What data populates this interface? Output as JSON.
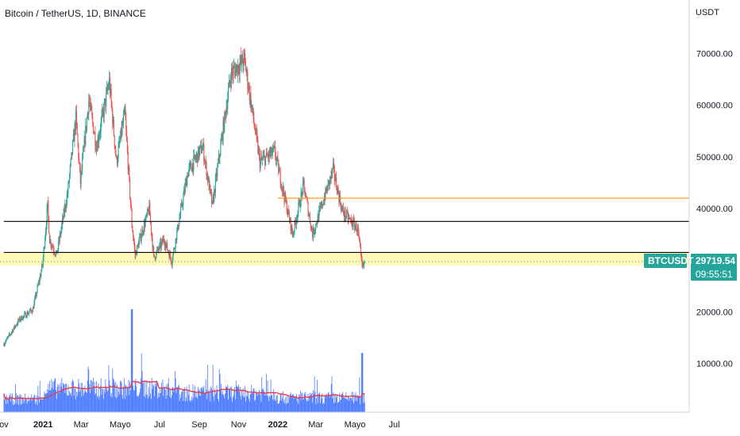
{
  "header": {
    "symbol_title": "Bitcoin / TetherUS, 1D, BINANCE",
    "currency": "USDT"
  },
  "price_tag": {
    "symbol": "BTCUSDT",
    "price": "29719.54",
    "countdown": "09:55:51"
  },
  "colors": {
    "up": "#26a69a",
    "down": "#ef5350",
    "volume": "#2962ff",
    "volume_ma": "#f23645",
    "support_zone": "#fff59d",
    "resistance_orange": "#ff9800",
    "level_black": "#000000",
    "price_line": "#26a69a"
  },
  "chart_data": {
    "type": "candlestick",
    "title": "Bitcoin / TetherUS, 1D, BINANCE",
    "y_axis_unit": "USDT",
    "y_ticks": [
      10000,
      20000,
      40000,
      50000,
      60000,
      70000
    ],
    "y_tick_labels": [
      "10000.00",
      "20000.00",
      "40000.00",
      "50000.00",
      "60000.00",
      "70000.00"
    ],
    "x_tick_labels": [
      "ov",
      "2021",
      "Mar",
      "Mayo",
      "Jul",
      "Sep",
      "Nov",
      "2022",
      "Mar",
      "Mayo",
      "Jul"
    ],
    "x_tick_dates": [
      "2020-11-01",
      "2021-01-01",
      "2021-03-01",
      "2021-05-01",
      "2021-07-01",
      "2021-09-01",
      "2021-11-01",
      "2022-01-01",
      "2022-03-01",
      "2022-05-01",
      "2022-07-01"
    ],
    "price_path": [
      [
        "2020-11-01",
        13800
      ],
      [
        "2020-11-25",
        18500
      ],
      [
        "2020-12-16",
        20500
      ],
      [
        "2020-12-31",
        29000
      ],
      [
        "2021-01-08",
        40500
      ],
      [
        "2021-01-11",
        34000
      ],
      [
        "2021-01-22",
        31000
      ],
      [
        "2021-02-08",
        43000
      ],
      [
        "2021-02-21",
        57500
      ],
      [
        "2021-02-28",
        45000
      ],
      [
        "2021-03-13",
        61000
      ],
      [
        "2021-03-25",
        52000
      ],
      [
        "2021-04-14",
        64500
      ],
      [
        "2021-04-25",
        49000
      ],
      [
        "2021-05-08",
        58500
      ],
      [
        "2021-05-19",
        37000
      ],
      [
        "2021-05-24",
        31000
      ],
      [
        "2021-06-15",
        40000
      ],
      [
        "2021-06-22",
        30500
      ],
      [
        "2021-07-08",
        34000
      ],
      [
        "2021-07-20",
        29800
      ],
      [
        "2021-08-14",
        47000
      ],
      [
        "2021-09-06",
        52000
      ],
      [
        "2021-09-21",
        40500
      ],
      [
        "2021-10-20",
        66000
      ],
      [
        "2021-11-10",
        68800
      ],
      [
        "2021-12-04",
        49000
      ],
      [
        "2021-12-27",
        51000
      ],
      [
        "2022-01-24",
        35000
      ],
      [
        "2022-02-10",
        44500
      ],
      [
        "2022-02-24",
        35000
      ],
      [
        "2022-03-28",
        47500
      ],
      [
        "2022-04-11",
        39500
      ],
      [
        "2022-05-05",
        36000
      ],
      [
        "2022-05-12",
        28500
      ],
      [
        "2022-05-16",
        29700
      ]
    ],
    "volume_note": "daily volume bars with moving average",
    "volume_spikes": [
      [
        "2021-05-19",
        20000
      ],
      [
        "2022-05-12",
        11500
      ]
    ],
    "horizontal_levels": [
      {
        "price": 42000,
        "color": "resistance_orange",
        "from": "2022-01-01"
      },
      {
        "price": 37500,
        "color": "level_black",
        "from": "2020-11-01"
      },
      {
        "price": 31500,
        "color": "level_black",
        "from": "2020-11-01"
      }
    ],
    "zones": [
      {
        "low": 29000,
        "high": 31500
      }
    ],
    "last_price": 29719.54
  }
}
